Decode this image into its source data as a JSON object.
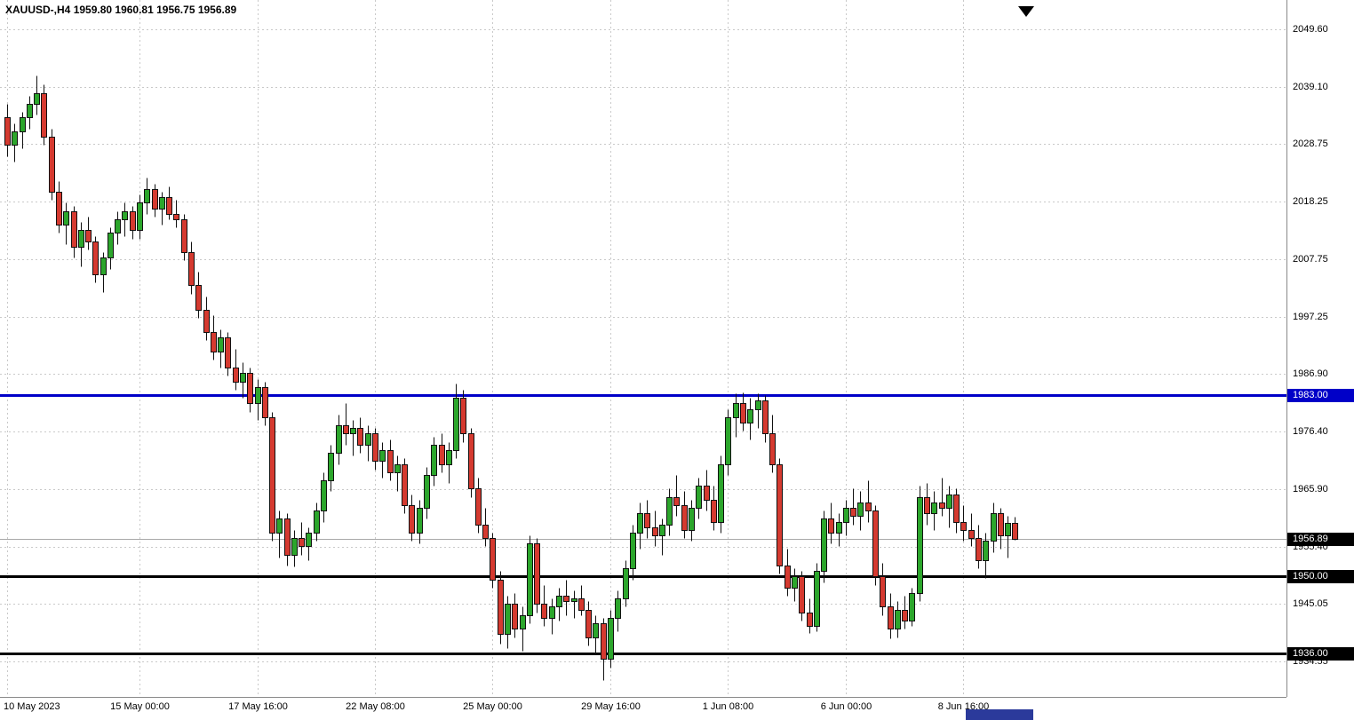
{
  "chart_title": {
    "symbol_period": "XAUUSD-,H4",
    "ohlc": "1959.80 1960.81 1956.75 1956.89"
  },
  "chart_data": {
    "type": "candlestick",
    "title": "XAUUSD-,H4 1959.80 1960.81 1956.75 1956.89",
    "symbol": "XAUUSD-",
    "timeframe": "H4",
    "current_candle": {
      "open": 1959.8,
      "high": 1960.81,
      "low": 1956.75,
      "close": 1956.89
    },
    "y_domain": [
      1928.1,
      2054.9
    ],
    "grid": true,
    "y_ticks": [
      "2049.60",
      "2039.10",
      "2028.75",
      "2018.25",
      "2007.75",
      "1997.25",
      "1986.90",
      "1976.40",
      "1965.90",
      "1955.40",
      "1945.05",
      "1934.55"
    ],
    "x_ticks": [
      {
        "index": 0,
        "label": "10 May 2023"
      },
      {
        "index": 18,
        "label": "15 May 00:00"
      },
      {
        "index": 34,
        "label": "17 May 16:00"
      },
      {
        "index": 50,
        "label": "22 May 08:00"
      },
      {
        "index": 66,
        "label": "25 May 00:00"
      },
      {
        "index": 82,
        "label": "29 May 16:00"
      },
      {
        "index": 98,
        "label": "1 Jun 08:00"
      },
      {
        "index": 114,
        "label": "6 Jun 00:00"
      },
      {
        "index": 130,
        "label": "8 Jun 16:00"
      }
    ],
    "hlines": [
      {
        "price": 1983.0,
        "label": "1983.00",
        "color": "#0000c8",
        "width": 3
      },
      {
        "price": 1950.0,
        "label": "1950.00",
        "color": "#000000",
        "width": 3
      },
      {
        "price": 1936.0,
        "label": "1936.00",
        "color": "#000000",
        "width": 3
      }
    ],
    "current_price": {
      "value": 1956.89,
      "label": "1956.89",
      "line_color": "#a8a8a8",
      "flag_color": "#000000"
    },
    "colors": {
      "up": "#2ca62c",
      "down": "#d53a30",
      "wick": "#111111",
      "grid": "#c9c9c9",
      "background": "#ffffff",
      "text": "#000000"
    },
    "candles": [
      [
        2033.5,
        2036.0,
        2026.5,
        2028.5
      ],
      [
        2028.5,
        2032.5,
        2025.5,
        2031.0
      ],
      [
        2031.0,
        2034.5,
        2028.0,
        2033.5
      ],
      [
        2033.5,
        2037.5,
        2031.5,
        2036.0
      ],
      [
        2036.0,
        2041.2,
        2034.0,
        2038.0
      ],
      [
        2038.0,
        2039.5,
        2028.5,
        2030.0
      ],
      [
        2030.0,
        2031.5,
        2018.5,
        2020.0
      ],
      [
        2020.0,
        2022.0,
        2012.5,
        2014.0
      ],
      [
        2014.0,
        2018.0,
        2010.5,
        2016.5
      ],
      [
        2016.5,
        2017.5,
        2008.0,
        2010.0
      ],
      [
        2010.0,
        2014.5,
        2006.5,
        2013.0
      ],
      [
        2013.0,
        2015.5,
        2009.5,
        2011.0
      ],
      [
        2011.0,
        2012.0,
        2003.5,
        2005.0
      ],
      [
        2005.0,
        2009.0,
        2001.8,
        2008.0
      ],
      [
        2008.0,
        2013.5,
        2006.0,
        2012.5
      ],
      [
        2012.5,
        2016.5,
        2010.5,
        2015.0
      ],
      [
        2015.0,
        2018.0,
        2012.0,
        2016.5
      ],
      [
        2016.5,
        2017.5,
        2011.5,
        2013.0
      ],
      [
        2013.0,
        2019.5,
        2011.5,
        2018.0
      ],
      [
        2018.0,
        2022.6,
        2016.0,
        2020.5
      ],
      [
        2020.5,
        2021.5,
        2015.5,
        2017.0
      ],
      [
        2017.0,
        2020.0,
        2014.0,
        2019.0
      ],
      [
        2019.0,
        2021.0,
        2015.0,
        2016.0
      ],
      [
        2016.0,
        2018.5,
        2013.5,
        2015.0
      ],
      [
        2015.0,
        2016.0,
        2007.5,
        2009.0
      ],
      [
        2009.0,
        2011.0,
        2001.5,
        2003.0
      ],
      [
        2003.0,
        2005.5,
        1997.0,
        1998.5
      ],
      [
        1998.5,
        2001.0,
        1993.0,
        1994.5
      ],
      [
        1994.5,
        1997.5,
        1989.5,
        1991.0
      ],
      [
        1991.0,
        1995.0,
        1988.0,
        1993.5
      ],
      [
        1993.5,
        1994.5,
        1986.5,
        1988.0
      ],
      [
        1988.0,
        1991.5,
        1984.0,
        1985.5
      ],
      [
        1985.5,
        1989.0,
        1982.5,
        1987.0
      ],
      [
        1987.0,
        1988.0,
        1980.0,
        1981.5
      ],
      [
        1981.5,
        1986.0,
        1978.5,
        1984.5
      ],
      [
        1984.5,
        1985.5,
        1977.5,
        1979.0
      ],
      [
        1979.0,
        1980.0,
        1956.5,
        1958.0
      ],
      [
        1958.0,
        1962.0,
        1953.5,
        1960.5
      ],
      [
        1960.5,
        1961.5,
        1952.0,
        1954.0
      ],
      [
        1954.0,
        1958.5,
        1951.8,
        1957.0
      ],
      [
        1957.0,
        1960.0,
        1954.0,
        1955.5
      ],
      [
        1955.5,
        1959.0,
        1953.0,
        1958.0
      ],
      [
        1958.0,
        1963.5,
        1956.5,
        1962.0
      ],
      [
        1962.0,
        1969.0,
        1960.0,
        1967.5
      ],
      [
        1967.5,
        1974.0,
        1965.5,
        1972.5
      ],
      [
        1972.5,
        1979.5,
        1970.5,
        1977.5
      ],
      [
        1977.5,
        1981.5,
        1974.0,
        1976.0
      ],
      [
        1976.0,
        1978.5,
        1972.0,
        1977.0
      ],
      [
        1977.0,
        1979.0,
        1972.5,
        1974.0
      ],
      [
        1974.0,
        1977.5,
        1971.0,
        1976.0
      ],
      [
        1976.0,
        1977.0,
        1969.5,
        1971.0
      ],
      [
        1971.0,
        1974.5,
        1968.0,
        1973.0
      ],
      [
        1973.0,
        1975.0,
        1967.5,
        1969.0
      ],
      [
        1969.0,
        1972.0,
        1965.5,
        1970.5
      ],
      [
        1970.5,
        1971.5,
        1961.5,
        1963.0
      ],
      [
        1963.0,
        1965.0,
        1956.5,
        1958.0
      ],
      [
        1958.0,
        1964.0,
        1956.0,
        1962.5
      ],
      [
        1962.5,
        1970.0,
        1960.5,
        1968.5
      ],
      [
        1968.5,
        1975.5,
        1966.5,
        1974.0
      ],
      [
        1974.0,
        1976.0,
        1969.0,
        1970.5
      ],
      [
        1970.5,
        1974.5,
        1967.0,
        1973.0
      ],
      [
        1973.0,
        1985.2,
        1971.5,
        1982.5
      ],
      [
        1982.5,
        1984.0,
        1974.5,
        1976.0
      ],
      [
        1976.0,
        1977.0,
        1964.5,
        1966.0
      ],
      [
        1966.0,
        1968.0,
        1958.0,
        1959.5
      ],
      [
        1959.5,
        1962.5,
        1955.5,
        1957.0
      ],
      [
        1957.0,
        1958.0,
        1948.0,
        1949.5
      ],
      [
        1949.5,
        1951.0,
        1937.8,
        1939.5
      ],
      [
        1939.5,
        1946.5,
        1937.0,
        1945.0
      ],
      [
        1945.0,
        1947.0,
        1939.0,
        1940.5
      ],
      [
        1940.5,
        1944.5,
        1936.5,
        1943.0
      ],
      [
        1943.0,
        1957.5,
        1941.5,
        1956.0
      ],
      [
        1956.0,
        1957.0,
        1943.5,
        1945.0
      ],
      [
        1945.0,
        1948.5,
        1941.0,
        1942.5
      ],
      [
        1942.5,
        1946.0,
        1939.5,
        1944.5
      ],
      [
        1944.5,
        1948.0,
        1942.0,
        1946.5
      ],
      [
        1946.5,
        1949.5,
        1943.0,
        1945.5
      ],
      [
        1945.5,
        1947.5,
        1942.5,
        1946.0
      ],
      [
        1946.0,
        1948.5,
        1943.0,
        1944.0
      ],
      [
        1944.0,
        1945.5,
        1937.5,
        1939.0
      ],
      [
        1939.0,
        1943.0,
        1936.0,
        1941.5
      ],
      [
        1941.5,
        1942.5,
        1931.2,
        1935.0
      ],
      [
        1935.0,
        1944.0,
        1933.5,
        1942.5
      ],
      [
        1942.5,
        1947.5,
        1940.0,
        1946.0
      ],
      [
        1946.0,
        1953.0,
        1944.5,
        1951.5
      ],
      [
        1951.5,
        1959.5,
        1949.5,
        1958.0
      ],
      [
        1958.0,
        1963.5,
        1955.0,
        1961.5
      ],
      [
        1961.5,
        1964.0,
        1957.0,
        1959.0
      ],
      [
        1959.0,
        1962.0,
        1955.5,
        1957.5
      ],
      [
        1957.5,
        1960.5,
        1954.0,
        1959.5
      ],
      [
        1959.5,
        1966.0,
        1957.5,
        1964.5
      ],
      [
        1964.5,
        1968.5,
        1961.0,
        1963.0
      ],
      [
        1963.0,
        1965.5,
        1957.0,
        1958.5
      ],
      [
        1958.5,
        1964.0,
        1956.5,
        1962.5
      ],
      [
        1962.5,
        1968.0,
        1960.5,
        1966.5
      ],
      [
        1966.5,
        1969.5,
        1962.0,
        1964.0
      ],
      [
        1964.0,
        1966.5,
        1958.5,
        1960.0
      ],
      [
        1960.0,
        1972.0,
        1958.0,
        1970.5
      ],
      [
        1970.5,
        1980.5,
        1968.5,
        1979.0
      ],
      [
        1979.0,
        1983.3,
        1975.5,
        1981.5
      ],
      [
        1981.5,
        1983.5,
        1976.5,
        1978.0
      ],
      [
        1978.0,
        1982.5,
        1975.0,
        1980.5
      ],
      [
        1980.5,
        1983.4,
        1977.0,
        1982.0
      ],
      [
        1982.0,
        1983.0,
        1974.5,
        1976.0
      ],
      [
        1976.0,
        1979.5,
        1969.0,
        1970.5
      ],
      [
        1970.5,
        1971.5,
        1950.5,
        1952.0
      ],
      [
        1952.0,
        1955.0,
        1946.5,
        1948.0
      ],
      [
        1948.0,
        1951.5,
        1945.5,
        1950.0
      ],
      [
        1950.0,
        1951.0,
        1942.0,
        1943.5
      ],
      [
        1943.5,
        1946.0,
        1939.8,
        1941.0
      ],
      [
        1941.0,
        1952.5,
        1940.0,
        1951.0
      ],
      [
        1951.0,
        1962.0,
        1949.0,
        1960.5
      ],
      [
        1960.5,
        1963.5,
        1956.0,
        1958.0
      ],
      [
        1958.0,
        1961.5,
        1955.5,
        1960.0
      ],
      [
        1960.0,
        1964.0,
        1957.5,
        1962.5
      ],
      [
        1962.5,
        1966.0,
        1959.5,
        1961.0
      ],
      [
        1961.0,
        1965.5,
        1958.5,
        1963.5
      ],
      [
        1963.5,
        1967.5,
        1960.0,
        1962.0
      ],
      [
        1962.0,
        1963.0,
        1948.5,
        1950.0
      ],
      [
        1950.0,
        1952.5,
        1943.0,
        1944.5
      ],
      [
        1944.5,
        1947.0,
        1938.8,
        1940.5
      ],
      [
        1940.5,
        1945.5,
        1939.0,
        1944.0
      ],
      [
        1944.0,
        1946.5,
        1940.5,
        1942.0
      ],
      [
        1942.0,
        1948.0,
        1941.0,
        1947.0
      ],
      [
        1947.0,
        1966.5,
        1945.5,
        1964.5
      ],
      [
        1964.5,
        1967.0,
        1959.5,
        1961.5
      ],
      [
        1961.5,
        1965.5,
        1958.5,
        1963.5
      ],
      [
        1963.5,
        1968.0,
        1961.0,
        1962.5
      ],
      [
        1962.5,
        1966.5,
        1959.0,
        1965.0
      ],
      [
        1965.0,
        1966.0,
        1958.0,
        1960.0
      ],
      [
        1960.0,
        1963.0,
        1956.5,
        1958.5
      ],
      [
        1958.5,
        1961.5,
        1955.5,
        1957.0
      ],
      [
        1957.0,
        1959.5,
        1951.5,
        1953.0
      ],
      [
        1953.0,
        1958.0,
        1949.8,
        1956.5
      ],
      [
        1956.5,
        1963.5,
        1954.5,
        1961.5
      ],
      [
        1961.5,
        1962.5,
        1955.0,
        1957.5
      ],
      [
        1957.5,
        1961.0,
        1953.5,
        1959.8
      ],
      [
        1959.8,
        1960.81,
        1956.75,
        1956.89
      ]
    ]
  }
}
